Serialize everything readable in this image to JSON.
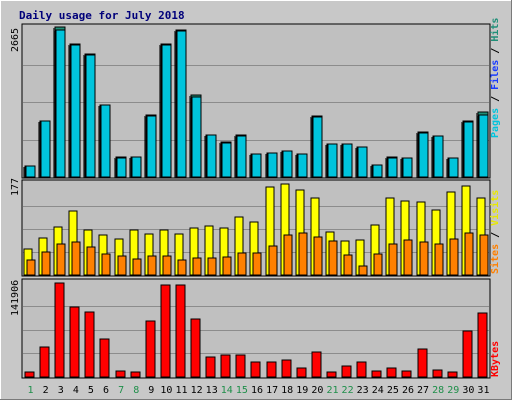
{
  "chart_data": {
    "type": "bar",
    "title": "Daily usage for July 2018",
    "days": [
      {
        "label": "1",
        "weekend": true
      },
      {
        "label": "2",
        "weekend": false
      },
      {
        "label": "3",
        "weekend": false
      },
      {
        "label": "4",
        "weekend": false
      },
      {
        "label": "5",
        "weekend": false
      },
      {
        "label": "6",
        "weekend": false
      },
      {
        "label": "7",
        "weekend": true
      },
      {
        "label": "8",
        "weekend": true
      },
      {
        "label": "9",
        "weekend": false
      },
      {
        "label": "10",
        "weekend": false
      },
      {
        "label": "11",
        "weekend": false
      },
      {
        "label": "12",
        "weekend": false
      },
      {
        "label": "13",
        "weekend": false
      },
      {
        "label": "14",
        "weekend": true
      },
      {
        "label": "15",
        "weekend": true
      },
      {
        "label": "16",
        "weekend": false
      },
      {
        "label": "17",
        "weekend": false
      },
      {
        "label": "18",
        "weekend": false
      },
      {
        "label": "19",
        "weekend": false
      },
      {
        "label": "20",
        "weekend": false
      },
      {
        "label": "21",
        "weekend": true
      },
      {
        "label": "22",
        "weekend": true
      },
      {
        "label": "23",
        "weekend": false
      },
      {
        "label": "24",
        "weekend": false
      },
      {
        "label": "25",
        "weekend": false
      },
      {
        "label": "26",
        "weekend": false
      },
      {
        "label": "27",
        "weekend": false
      },
      {
        "label": "28",
        "weekend": true
      },
      {
        "label": "29",
        "weekend": true
      },
      {
        "label": "30",
        "weekend": false
      },
      {
        "label": "31",
        "weekend": false
      }
    ],
    "panels": [
      {
        "ymax_label": "2665",
        "ymax": 2665,
        "side_labels": [
          {
            "text": "Pages",
            "color": "#00c4dc"
          },
          {
            "text": " / ",
            "color": "#000000"
          },
          {
            "text": "Files",
            "color": "#1a3cff"
          },
          {
            "text": " / ",
            "color": "#000000"
          },
          {
            "text": "Hits",
            "color": "#1f8f78"
          }
        ],
        "series": [
          {
            "name": "Hits",
            "color": "#1f8f78",
            "values": [
              190,
              1000,
              2670,
              2370,
              2180,
              1280,
              350,
              360,
              1100,
              2370,
              2620,
              1450,
              740,
              620,
              740,
              410,
              430,
              470,
              400,
              1080,
              580,
              590,
              530,
              220,
              350,
              340,
              800,
              730,
              340,
              990,
              1150
            ]
          },
          {
            "name": "Files",
            "color": "#00c4dc",
            "values": [
              190,
              1000,
              2620,
              2350,
              2160,
              1280,
              340,
              350,
              1090,
              2350,
              2600,
              1420,
              740,
              610,
              730,
              400,
              430,
              460,
              400,
              1070,
              580,
              590,
              530,
              210,
              340,
              330,
              790,
              720,
              330,
              970,
              1110
            ]
          }
        ]
      },
      {
        "ymax_label": "177",
        "ymax": 177,
        "side_labels": [
          {
            "text": "Sites",
            "color": "#ff8000"
          },
          {
            "text": " / ",
            "color": "#000000"
          },
          {
            "text": "Visits",
            "color": "#e8e800"
          }
        ],
        "series": [
          {
            "name": "Visits",
            "color": "#ffff00",
            "values": [
              50,
              72,
              92,
              123,
              87,
              76,
              70,
              86,
              79,
              86,
              78,
              91,
              94,
              91,
              112,
              102,
              170,
              175,
              164,
              148,
              82,
              66,
              67,
              96,
              148,
              143,
              141,
              126,
              160,
              171,
              149
            ]
          },
          {
            "name": "Sites",
            "color": "#ff8000",
            "values": [
              29,
              45,
              60,
              64,
              53,
              41,
              36,
              30,
              37,
              36,
              29,
              33,
              33,
              35,
              43,
              42,
              56,
              77,
              81,
              73,
              66,
              38,
              18,
              40,
              60,
              67,
              63,
              60,
              70,
              81,
              77
            ]
          }
        ]
      },
      {
        "ymax_label": "141906",
        "ymax": 141906,
        "side_labels": [
          {
            "text": "KBytes",
            "color": "#ff0000"
          }
        ],
        "series": [
          {
            "name": "KBytes",
            "color": "#ff0000",
            "values": [
              7000,
              45000,
              141000,
              105000,
              97000,
              57000,
              9000,
              8000,
              84000,
              137000,
              138000,
              86000,
              30000,
              33000,
              33000,
              22000,
              22000,
              25000,
              13000,
              38000,
              8000,
              16000,
              23000,
              9000,
              14000,
              9000,
              42000,
              10000,
              7000,
              69000,
              95000
            ]
          }
        ]
      }
    ]
  }
}
